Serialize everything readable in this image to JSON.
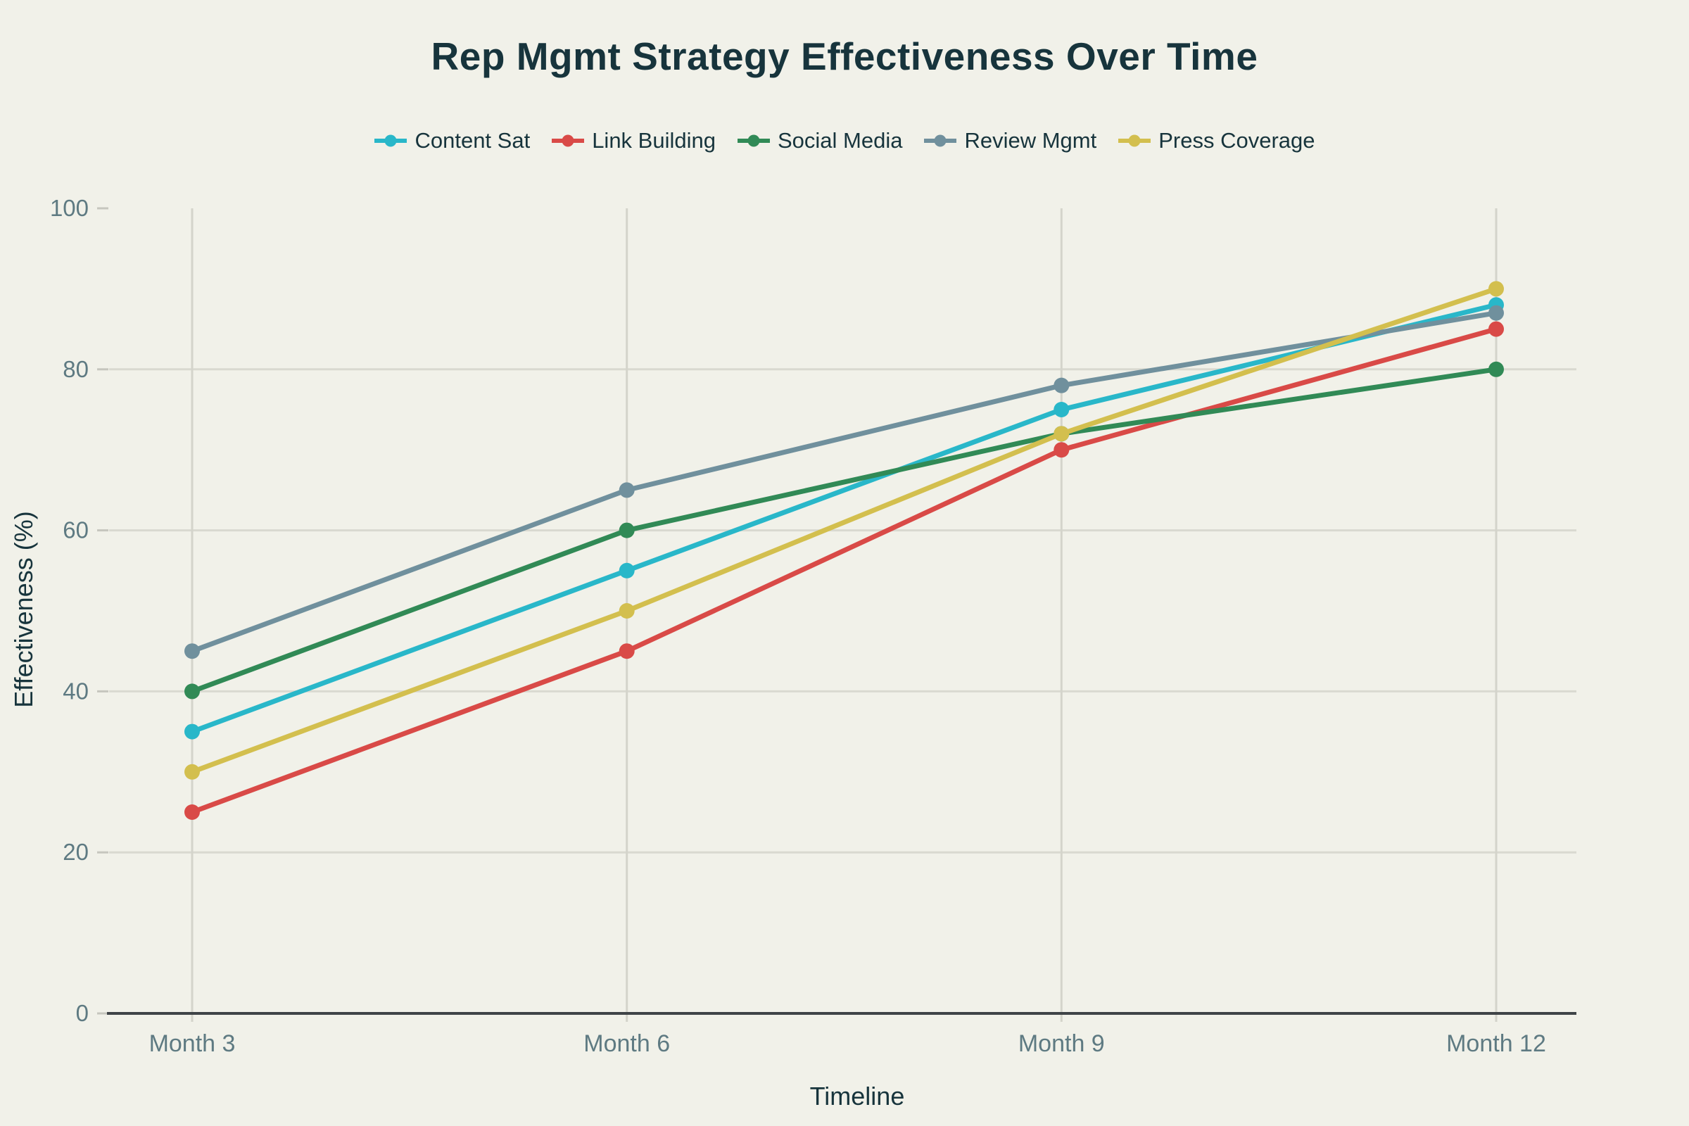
{
  "title": "Rep Mgmt Strategy Effectiveness Over Time",
  "chart_data": {
    "type": "line",
    "x": [
      "Month 3",
      "Month 6",
      "Month 9",
      "Month 12"
    ],
    "series": [
      {
        "name": "Content Sat",
        "color": "#29b7c9",
        "values": [
          35,
          55,
          75,
          88
        ]
      },
      {
        "name": "Link Building",
        "color": "#d94a47",
        "values": [
          25,
          45,
          70,
          85
        ]
      },
      {
        "name": "Social Media",
        "color": "#318a56",
        "values": [
          40,
          60,
          72,
          80
        ]
      },
      {
        "name": "Review Mgmt",
        "color": "#70909d",
        "values": [
          45,
          65,
          78,
          87
        ]
      },
      {
        "name": "Press Coverage",
        "color": "#d3bf4e",
        "values": [
          30,
          50,
          72,
          90
        ]
      }
    ],
    "xlabel": "Timeline",
    "ylabel": "Effectiveness (%)",
    "ylim": [
      0,
      100
    ],
    "yticks": [
      0,
      20,
      40,
      60,
      80,
      100
    ],
    "grid": true,
    "legend_position": "top-center"
  },
  "colors": {
    "background": "#f1f1e9",
    "title_text": "#17343c",
    "tick_text": "#5e7a82",
    "grid": "#d9d9d0",
    "minor_tick": "#c6c6be",
    "axis_line": "#3f4447"
  }
}
